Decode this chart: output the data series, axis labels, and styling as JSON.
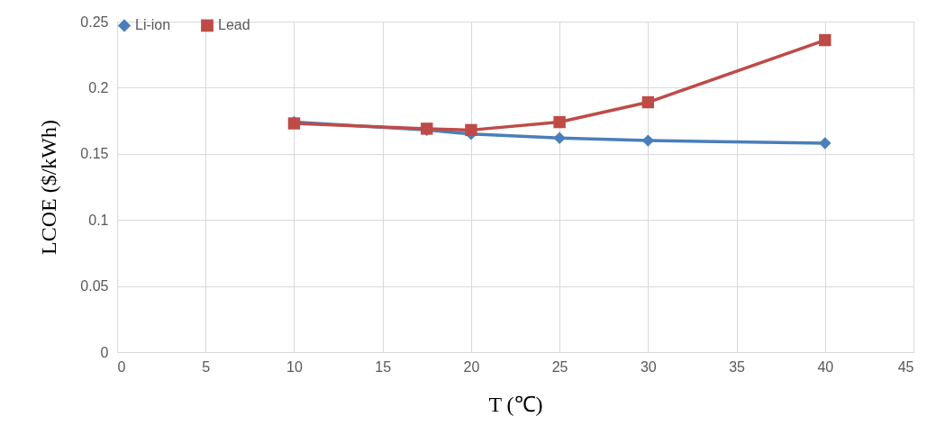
{
  "chart_data": {
    "type": "line",
    "xlabel": "T (℃)",
    "ylabel": "LCOE ($/kWh)",
    "x": [
      10,
      17.5,
      20,
      25,
      30,
      40
    ],
    "series": [
      {
        "name": "Li-ion",
        "color": "#4a7ebb",
        "marker": "diamond",
        "values": [
          0.174,
          0.168,
          0.165,
          0.162,
          0.16,
          0.158
        ]
      },
      {
        "name": "Lead",
        "color": "#be4b48",
        "marker": "square",
        "values": [
          0.173,
          0.169,
          0.168,
          0.174,
          0.189,
          0.236
        ]
      }
    ],
    "xlim": [
      0,
      45
    ],
    "xticks": [
      0,
      5,
      10,
      15,
      20,
      25,
      30,
      35,
      40,
      45
    ],
    "ylim": [
      0,
      0.25
    ],
    "yticks": [
      0,
      0.05,
      0.1,
      0.15,
      0.2,
      0.25
    ],
    "grid": true,
    "legend": "top",
    "line_style": "solid"
  }
}
